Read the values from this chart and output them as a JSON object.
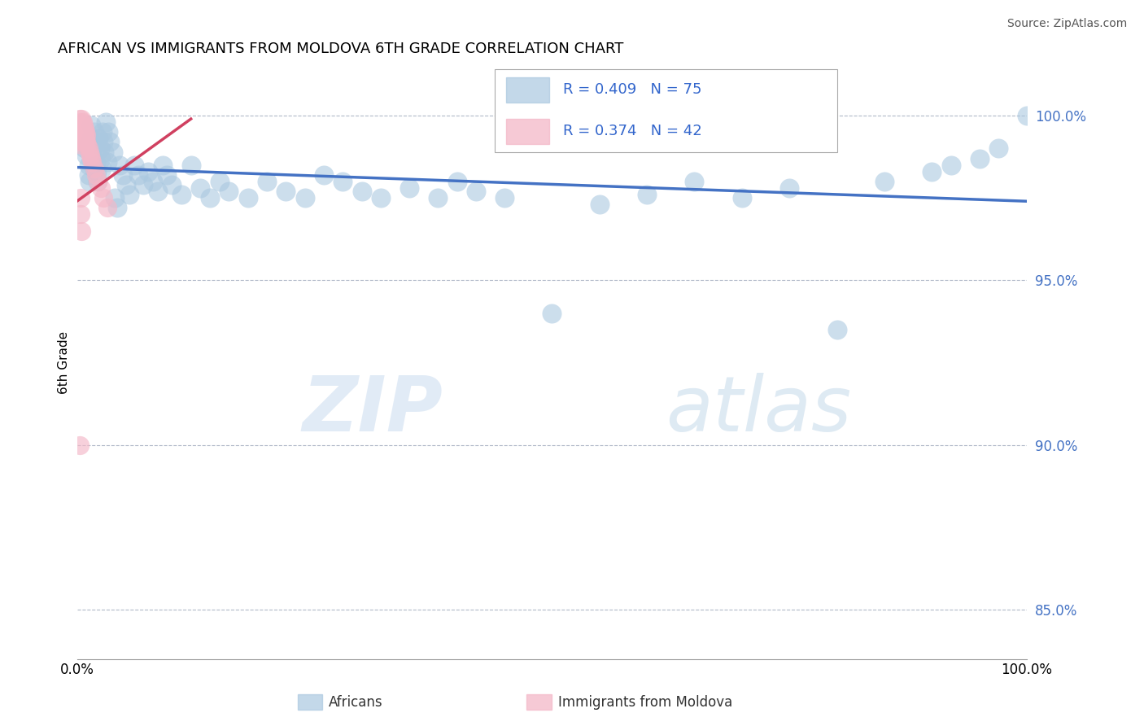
{
  "title": "AFRICAN VS IMMIGRANTS FROM MOLDOVA 6TH GRADE CORRELATION CHART",
  "source": "Source: ZipAtlas.com",
  "ylabel": "6th Grade",
  "yticks": [
    0.85,
    0.9,
    0.95,
    1.0
  ],
  "ytick_labels": [
    "85.0%",
    "90.0%",
    "95.0%",
    "100.0%"
  ],
  "ylim": [
    0.835,
    1.015
  ],
  "xlim": [
    0.0,
    1.0
  ],
  "blue_R": 0.409,
  "blue_N": 75,
  "pink_R": 0.374,
  "pink_N": 42,
  "blue_color": "#aac8e0",
  "pink_color": "#f4b8c8",
  "blue_line_color": "#4472c4",
  "pink_line_color": "#d04060",
  "watermark_zip": "ZIP",
  "watermark_atlas": "atlas",
  "blue_scatter_x": [
    0.008,
    0.01,
    0.012,
    0.012,
    0.013,
    0.015,
    0.015,
    0.016,
    0.017,
    0.018,
    0.018,
    0.019,
    0.02,
    0.02,
    0.021,
    0.022,
    0.023,
    0.024,
    0.025,
    0.026,
    0.027,
    0.028,
    0.029,
    0.03,
    0.032,
    0.033,
    0.035,
    0.038,
    0.04,
    0.042,
    0.045,
    0.048,
    0.052,
    0.055,
    0.06,
    0.065,
    0.07,
    0.075,
    0.08,
    0.085,
    0.09,
    0.095,
    0.1,
    0.11,
    0.12,
    0.13,
    0.14,
    0.15,
    0.16,
    0.18,
    0.2,
    0.22,
    0.24,
    0.26,
    0.28,
    0.3,
    0.32,
    0.35,
    0.38,
    0.4,
    0.42,
    0.45,
    0.5,
    0.55,
    0.6,
    0.65,
    0.7,
    0.75,
    0.8,
    0.85,
    0.9,
    0.92,
    0.95,
    0.97,
    1.0
  ],
  "blue_scatter_y": [
    0.99,
    0.988,
    0.985,
    0.982,
    0.98,
    0.997,
    0.993,
    0.99,
    0.987,
    0.984,
    0.995,
    0.992,
    0.989,
    0.986,
    0.983,
    0.98,
    0.993,
    0.99,
    0.987,
    0.984,
    0.995,
    0.992,
    0.989,
    0.998,
    0.986,
    0.995,
    0.992,
    0.989,
    0.975,
    0.972,
    0.985,
    0.982,
    0.979,
    0.976,
    0.985,
    0.982,
    0.979,
    0.983,
    0.98,
    0.977,
    0.985,
    0.982,
    0.979,
    0.976,
    0.985,
    0.978,
    0.975,
    0.98,
    0.977,
    0.975,
    0.98,
    0.977,
    0.975,
    0.982,
    0.98,
    0.977,
    0.975,
    0.978,
    0.975,
    0.98,
    0.977,
    0.975,
    0.94,
    0.973,
    0.976,
    0.98,
    0.975,
    0.978,
    0.935,
    0.98,
    0.983,
    0.985,
    0.987,
    0.99,
    1.0
  ],
  "pink_scatter_x": [
    0.003,
    0.003,
    0.003,
    0.004,
    0.004,
    0.004,
    0.004,
    0.005,
    0.005,
    0.005,
    0.005,
    0.005,
    0.006,
    0.006,
    0.006,
    0.006,
    0.007,
    0.007,
    0.007,
    0.008,
    0.008,
    0.008,
    0.009,
    0.009,
    0.01,
    0.01,
    0.011,
    0.012,
    0.013,
    0.014,
    0.015,
    0.016,
    0.018,
    0.02,
    0.022,
    0.025,
    0.028,
    0.032,
    0.004,
    0.004,
    0.005,
    0.003
  ],
  "pink_scatter_y": [
    0.999,
    0.997,
    0.995,
    0.998,
    0.996,
    0.994,
    0.992,
    0.999,
    0.997,
    0.995,
    0.993,
    0.991,
    0.998,
    0.996,
    0.994,
    0.992,
    0.997,
    0.995,
    0.993,
    0.996,
    0.994,
    0.992,
    0.995,
    0.993,
    0.994,
    0.992,
    0.991,
    0.99,
    0.989,
    0.988,
    0.987,
    0.986,
    0.984,
    0.982,
    0.98,
    0.978,
    0.975,
    0.972,
    0.975,
    0.97,
    0.965,
    0.9
  ],
  "pink_trendline_x": [
    0.0,
    0.12
  ],
  "pink_trendline_y": [
    0.974,
    0.999
  ]
}
